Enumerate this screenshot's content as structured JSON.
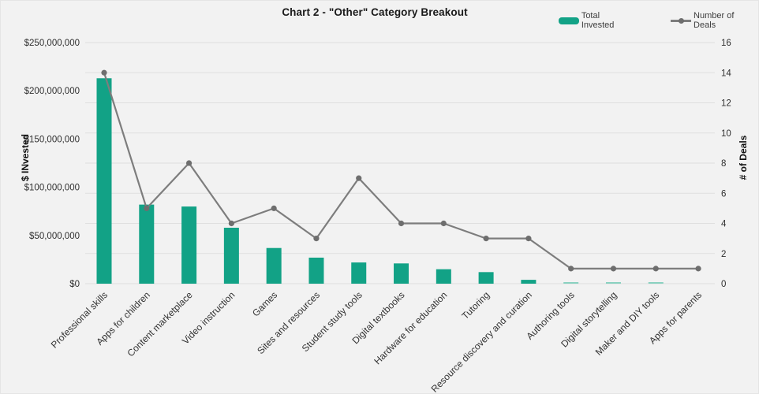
{
  "page": {
    "background": "#f2f2f2"
  },
  "header": {
    "title": "Chart 2 - \"Other\" Category Breakout"
  },
  "legend": {
    "position": "top-right",
    "items": [
      {
        "label": "Total Invested",
        "swatch": "bar",
        "color": "#12a286"
      },
      {
        "label": "Number of Deals",
        "swatch": "line-with-dot",
        "color": "#7d7d7d"
      }
    ]
  },
  "chart_data": {
    "type": "bar",
    "subtype": "combo bar+line, dual axis",
    "title": "Chart 2 - \"Other\" Category Breakout",
    "categories": [
      "Professional skills",
      "Apps for children",
      "Content marketplace",
      "Video instruction",
      "Games",
      "Sites and resources",
      "Student study tools",
      "Digital textbooks",
      "Hardware for education",
      "Tutoring",
      "Resource discovery and curation",
      "Authoring tools",
      "Digital storytelling",
      "Maker and DIY tools",
      "Apps for parents"
    ],
    "series": [
      {
        "name": "Total Invested",
        "render": "bar",
        "axis": "left",
        "color": "#12a286",
        "color_tiny_bar": "#8ad1c0",
        "values": [
          213000000,
          82000000,
          80000000,
          58000000,
          37000000,
          27000000,
          22000000,
          21000000,
          15000000,
          12000000,
          4000000,
          1000000,
          1000000,
          1000000,
          0
        ]
      },
      {
        "name": "Number of Deals",
        "render": "line",
        "axis": "right",
        "color": "#7d7d7d",
        "marker_color": "#6e6e6e",
        "values": [
          14,
          5,
          8,
          4,
          5,
          3,
          7,
          4,
          4,
          3,
          3,
          1,
          1,
          1,
          1
        ]
      }
    ],
    "left_axis": {
      "title": "$ INvested",
      "min": 0,
      "max": 250000000,
      "tick_step": 50000000,
      "tick_labels": [
        "$0",
        "$50,000,000",
        "$100,000,000",
        "$150,000,000",
        "$200,000,000",
        "$250,000,000"
      ]
    },
    "right_axis": {
      "title": "# of Deals",
      "min": 0,
      "max": 16,
      "tick_step": 2,
      "tick_labels": [
        "0",
        "2",
        "4",
        "6",
        "8",
        "10",
        "12",
        "14",
        "16"
      ]
    },
    "x_axis": {
      "tick_rotation": -45
    },
    "grid": {
      "horizontal": true,
      "aligned_to": "right_axis",
      "color": "#dfdfdf"
    },
    "legend_position": "top-right"
  }
}
